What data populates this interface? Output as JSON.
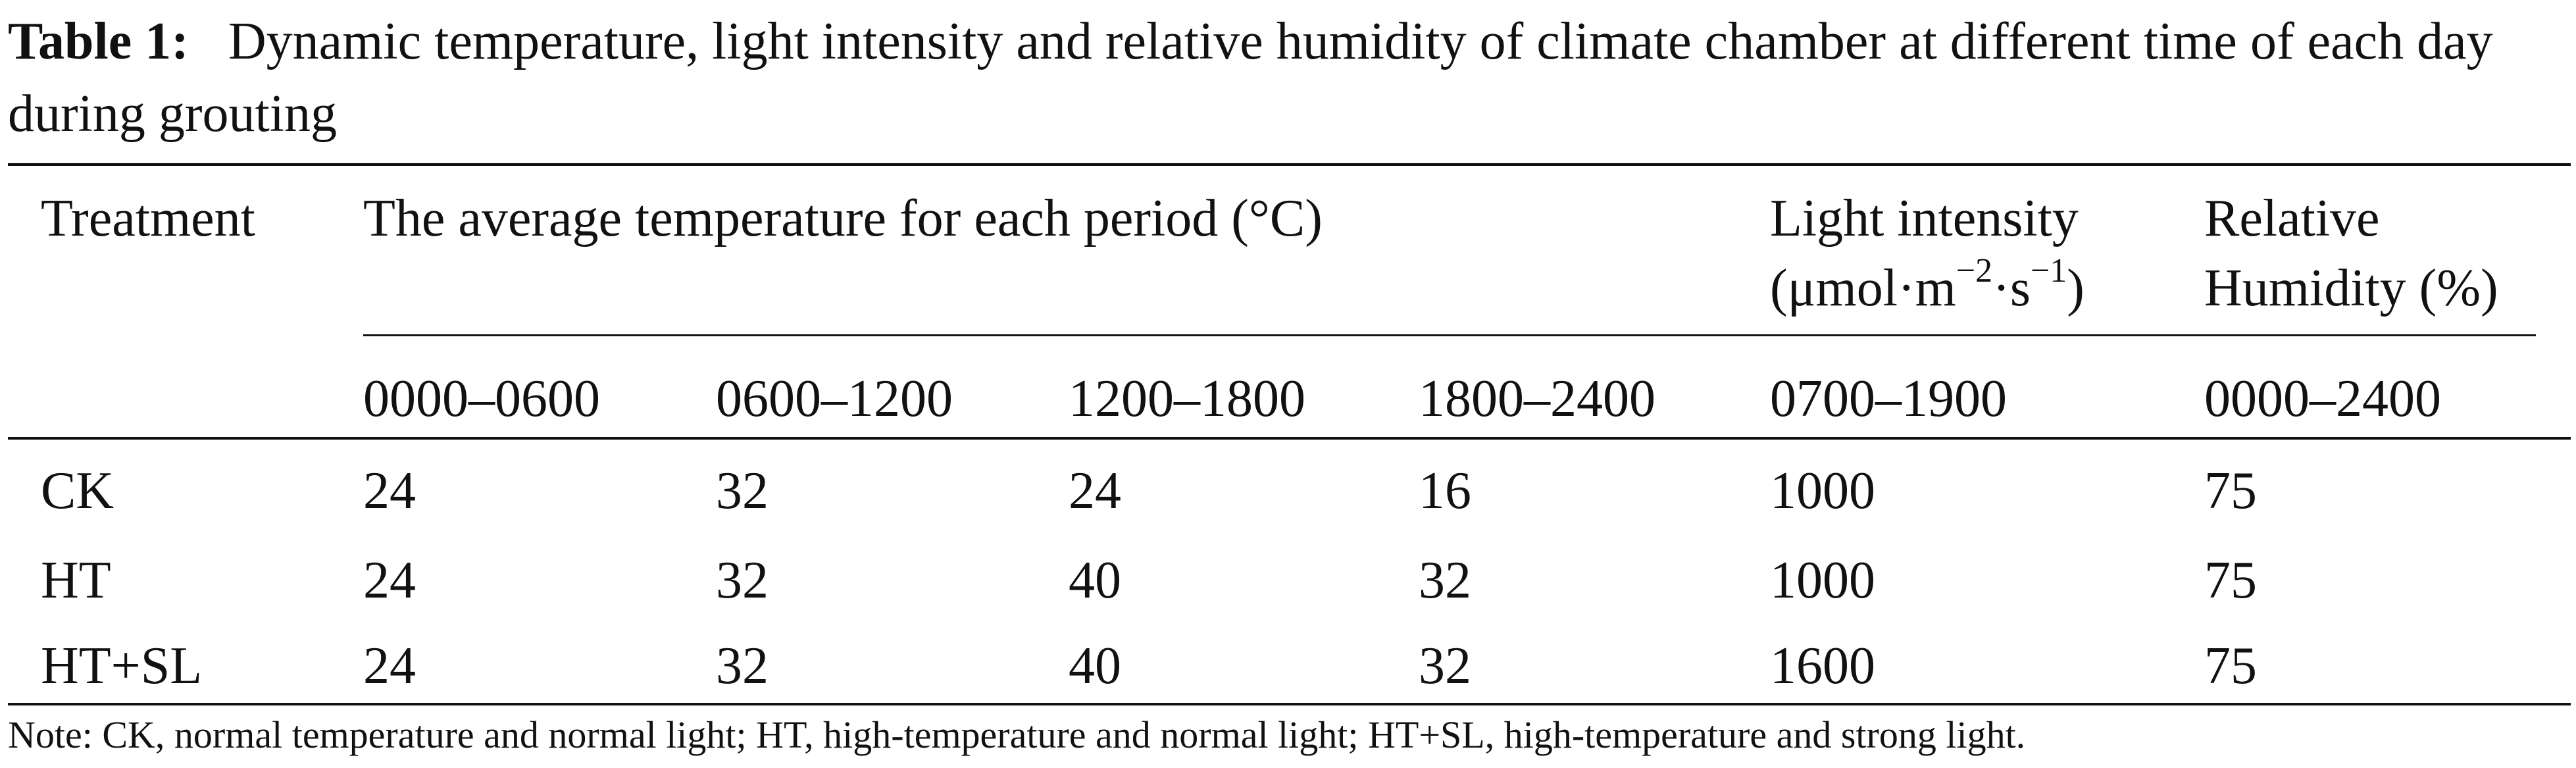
{
  "caption": {
    "label": "Table 1:",
    "text": "Dynamic temperature, light intensity and relative humidity of climate chamber at different time of each day during grouting"
  },
  "table": {
    "headers": {
      "treatment": "Treatment",
      "temperature": "The average temperature for each period (°C)",
      "light_line1": "Light intensity",
      "light_unit_prefix": "(μmol·m",
      "light_exp1": "−2",
      "light_unit_mid": "·s",
      "light_exp2": "−1",
      "light_unit_suffix": ")",
      "humidity_line1": "Relative",
      "humidity_line2": "Humidity (%)"
    },
    "periods": [
      "0000–0600",
      "0600–1200",
      "1200–1800",
      "1800–2400",
      "0700–1900",
      "0000–2400"
    ],
    "rows": [
      {
        "treatment": "CK",
        "values": [
          "24",
          "32",
          "24",
          "16",
          "1000",
          "75"
        ]
      },
      {
        "treatment": "HT",
        "values": [
          "24",
          "32",
          "40",
          "32",
          "1000",
          "75"
        ]
      },
      {
        "treatment": "HT+SL",
        "values": [
          "24",
          "32",
          "40",
          "32",
          "1600",
          "75"
        ]
      }
    ]
  },
  "note": "Note: CK, normal temperature and normal light; HT, high-temperature and normal light; HT+SL, high-temperature and strong light."
}
